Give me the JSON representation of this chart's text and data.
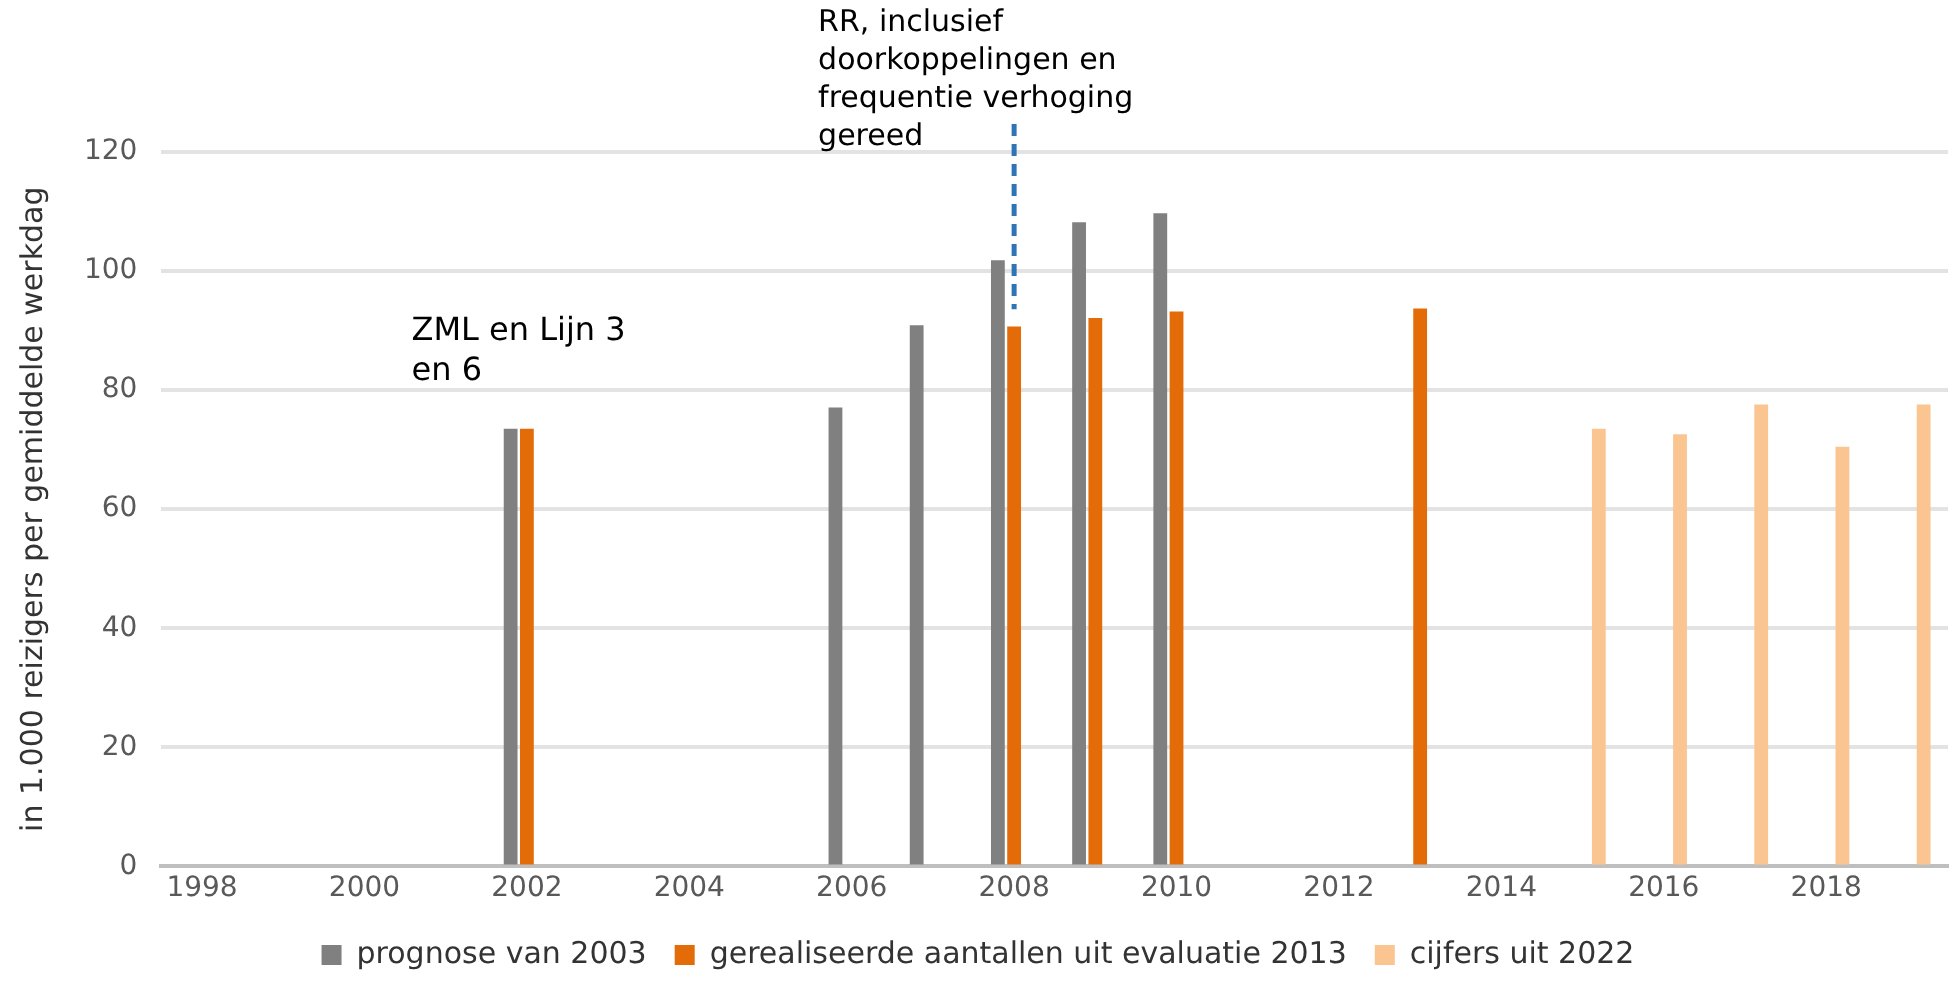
{
  "chart_data": {
    "type": "bar",
    "ylabel": "in 1.000 reizigers per gemiddelde werkdag",
    "categories": [
      "1998",
      null,
      "2000",
      null,
      "2002",
      null,
      "2004",
      null,
      "2006",
      null,
      "2008",
      null,
      "2010",
      null,
      "2012",
      null,
      "2014",
      null,
      "2016",
      null,
      "2018",
      null
    ],
    "series": [
      {
        "name": "prognose van 2003",
        "color": "#808080",
        "values": [
          null,
          null,
          null,
          null,
          73.5,
          null,
          null,
          null,
          77.1,
          90.9,
          101.8,
          108.2,
          109.7,
          null,
          null,
          null,
          null,
          null,
          null,
          null,
          null,
          null
        ]
      },
      {
        "name": "gerealiseerde aantallen uit evaluatie 2013",
        "color": "#e36c09",
        "values": [
          null,
          null,
          null,
          null,
          73.5,
          null,
          null,
          null,
          null,
          null,
          90.7,
          92.1,
          93.2,
          null,
          null,
          93.7,
          null,
          null,
          null,
          null,
          null,
          null
        ]
      },
      {
        "name": "cijfers uit 2022",
        "color": "#fac590",
        "values": [
          null,
          null,
          null,
          null,
          null,
          null,
          null,
          null,
          null,
          null,
          null,
          null,
          null,
          null,
          null,
          null,
          null,
          73.5,
          72.6,
          77.6,
          70.5,
          77.6
        ]
      }
    ],
    "ylim": [
      0,
      120
    ],
    "yticks": [
      0,
      20,
      40,
      60,
      80,
      100,
      120
    ],
    "grid": "y",
    "legend": "bottom",
    "ref_lines": [
      {
        "axis": "x",
        "value": "2008",
        "label": "RR, inclusief doorkoppelingen en frequentie verhoging gereed",
        "color": "#2e75b6",
        "line_style": "dashed"
      }
    ],
    "annotations": [
      "ZML en Lijn 3 en 6"
    ]
  }
}
